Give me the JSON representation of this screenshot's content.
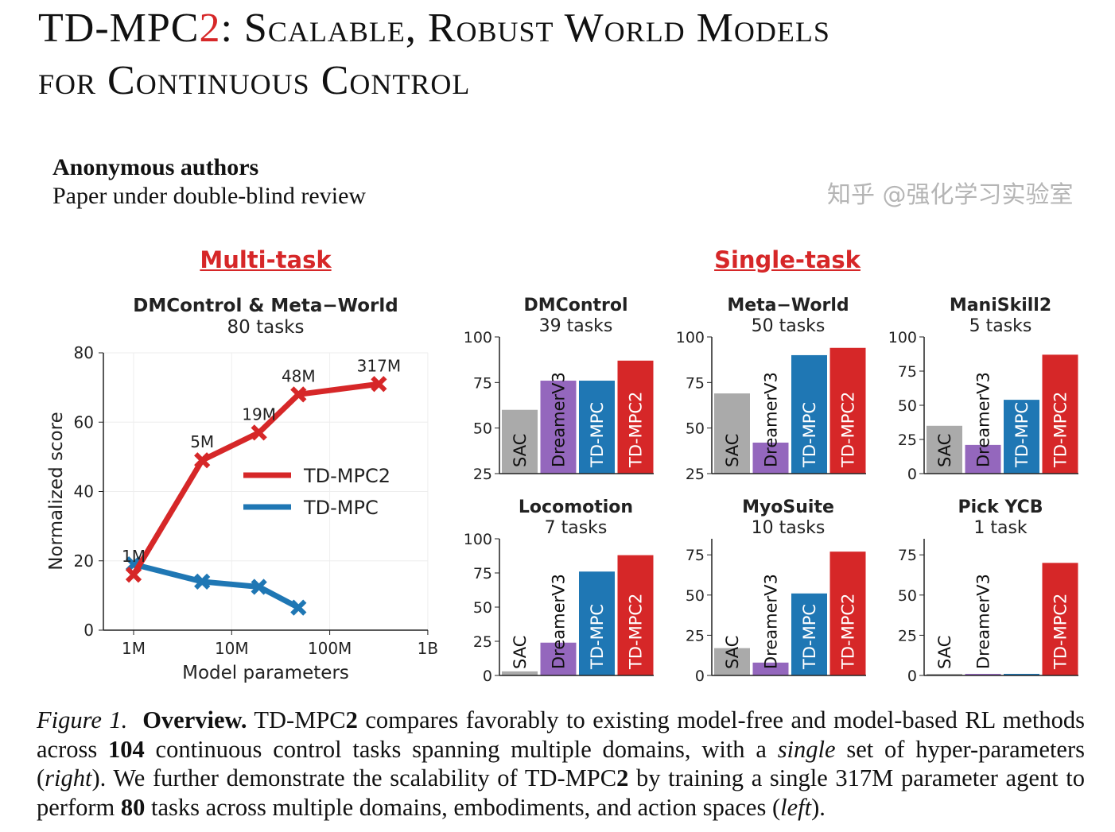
{
  "title": {
    "line1_a": "TD-MPC",
    "line1_b": "2",
    "line1_c": ": Scalable, Robust World Models",
    "line2": "for Continuous Control"
  },
  "authors": {
    "name": "Anonymous authors",
    "note": "Paper under double-blind review"
  },
  "sections": {
    "multi": "Multi-task",
    "single": "Single-task"
  },
  "colors": {
    "SAC": "#aaaaaa",
    "DreamerV3": "#9467bd",
    "TD-MPC": "#1f77b4",
    "TD-MPC2": "#d62728"
  },
  "chart_data": [
    {
      "type": "line",
      "title": "DMControl & Meta−World",
      "subtitle": "80 tasks",
      "xlabel": "Model parameters",
      "ylabel": "Normalized score",
      "xscale": "log",
      "xlim": [
        1000000,
        1000000000
      ],
      "ylim": [
        0,
        80
      ],
      "xticks": [
        "1M",
        "10M",
        "100M",
        "1B"
      ],
      "yticks": [
        0,
        20,
        40,
        60,
        80
      ],
      "grid": true,
      "legend": "center-right",
      "series": [
        {
          "name": "TD-MPC2",
          "color": "#d62728",
          "x": [
            1000000,
            5000000,
            19000000,
            48000000,
            317000000
          ],
          "y": [
            16,
            49,
            57,
            68,
            71
          ],
          "labels": [
            "1M",
            "5M",
            "19M",
            "48M",
            "317M"
          ]
        },
        {
          "name": "TD-MPC",
          "color": "#1f77b4",
          "x": [
            1000000,
            5000000,
            19000000,
            48000000
          ],
          "y": [
            19,
            14,
            12.5,
            6.5
          ]
        }
      ]
    },
    {
      "type": "bar",
      "title": "DMControl",
      "subtitle": "39 tasks",
      "categories": [
        "SAC",
        "DreamerV3",
        "TD-MPC",
        "TD-MPC2"
      ],
      "values": [
        60,
        76,
        76,
        87
      ],
      "ylim": [
        25,
        100
      ],
      "yticks": [
        25,
        50,
        75,
        100
      ]
    },
    {
      "type": "bar",
      "title": "Meta−World",
      "subtitle": "50 tasks",
      "categories": [
        "SAC",
        "DreamerV3",
        "TD-MPC",
        "TD-MPC2"
      ],
      "values": [
        69,
        42,
        90,
        94
      ],
      "ylim": [
        25,
        100
      ],
      "yticks": [
        25,
        50,
        75,
        100
      ]
    },
    {
      "type": "bar",
      "title": "ManiSkill2",
      "subtitle": "5 tasks",
      "categories": [
        "SAC",
        "DreamerV3",
        "TD-MPC",
        "TD-MPC2"
      ],
      "values": [
        35,
        21,
        54,
        87
      ],
      "ylim": [
        0,
        100
      ],
      "yticks": [
        0,
        25,
        50,
        75,
        100
      ]
    },
    {
      "type": "bar",
      "title": "Locomotion",
      "subtitle": "7 tasks",
      "categories": [
        "SAC",
        "DreamerV3",
        "TD-MPC",
        "TD-MPC2"
      ],
      "values": [
        3,
        24,
        76,
        88
      ],
      "ylim": [
        0,
        100
      ],
      "yticks": [
        0,
        25,
        50,
        75,
        100
      ]
    },
    {
      "type": "bar",
      "title": "MyoSuite",
      "subtitle": "10 tasks",
      "categories": [
        "SAC",
        "DreamerV3",
        "TD-MPC",
        "TD-MPC2"
      ],
      "values": [
        17,
        8,
        51,
        77
      ],
      "ylim": [
        0,
        85
      ],
      "yticks": [
        0,
        25,
        50,
        75
      ]
    },
    {
      "type": "bar",
      "title": "Pick YCB",
      "subtitle": "1 task",
      "categories": [
        "SAC",
        "DreamerV3",
        "TD-MPC",
        "TD-MPC2"
      ],
      "values": [
        1,
        1,
        1,
        70
      ],
      "ylim": [
        0,
        85
      ],
      "yticks": [
        0,
        25,
        50,
        75
      ]
    }
  ],
  "caption": {
    "fig": "Figure 1.",
    "bold": "Overview.",
    "t1": "TD-MPC",
    "t1b": "2",
    "t2": " compares favorably to existing model-free and model-based RL methods across ",
    "n1": "104",
    "t3": " continuous control tasks spanning multiple domains, with a ",
    "i1": "single",
    "t4": " set of hyper-parameters (",
    "i2": "right",
    "t5": "). We further demonstrate the scalability of TD-MPC",
    "t5b": "2",
    "t6": " by training a single 317M parameter agent to perform ",
    "n2": "80",
    "t7": " tasks across multiple domains, embodiments, and action spaces (",
    "i3": "left",
    "t8": ")."
  },
  "watermark": "知乎 @强化学习实验室"
}
